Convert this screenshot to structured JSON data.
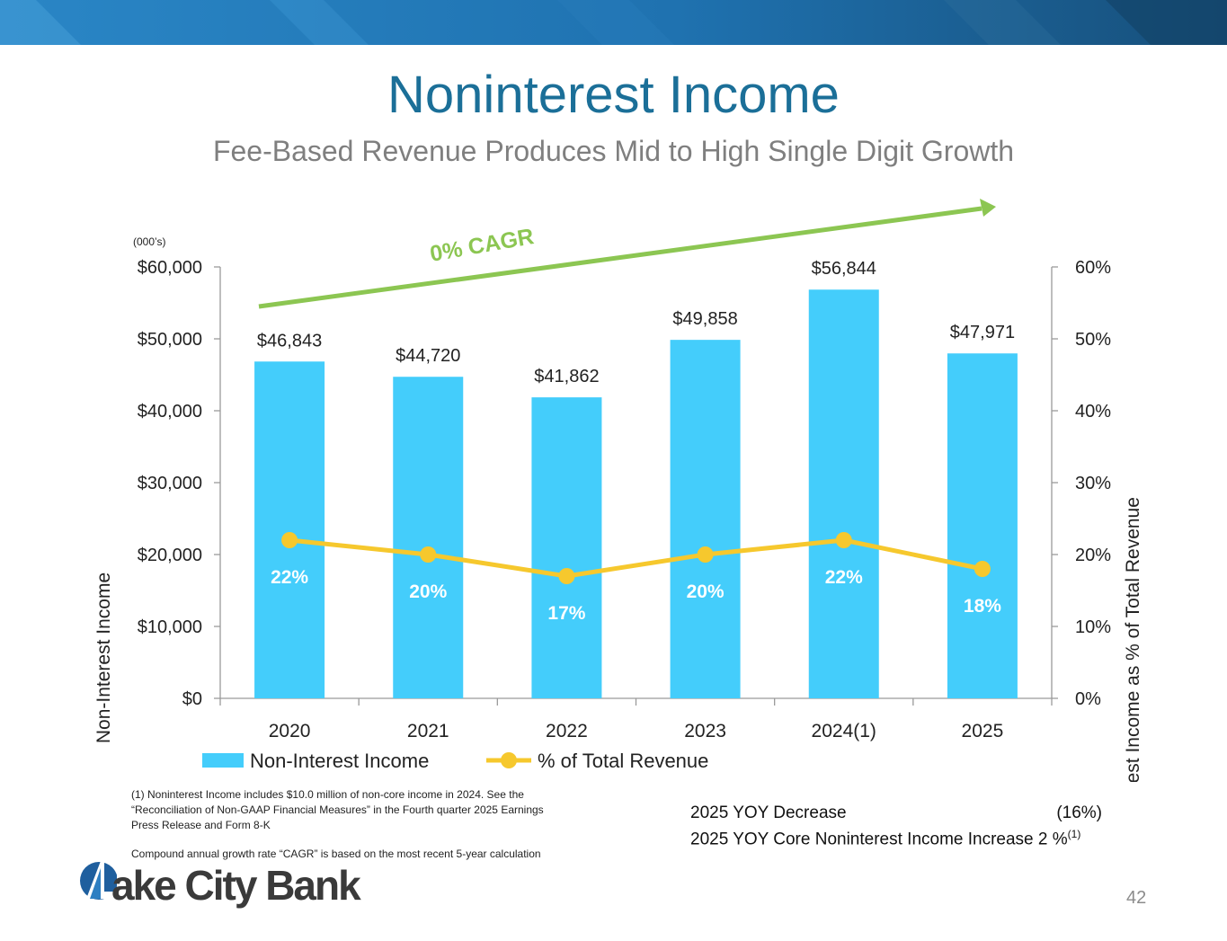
{
  "header": {
    "title": "Noninterest Income",
    "subtitle": "Fee-Based Revenue Produces Mid to High Single Digit Growth"
  },
  "colors": {
    "banner_dark": "#174f7a",
    "banner_light": "#2a86c6",
    "title": "#1b6f98",
    "bar": "#44cdfb",
    "line": "#f6c82d",
    "cagr": "#8cc652"
  },
  "chart_data": {
    "type": "bar",
    "title": "",
    "units_note": "(000’s)",
    "categories": [
      "2020",
      "2021",
      "2022",
      "2023",
      "2024(1)",
      "2025"
    ],
    "series": [
      {
        "name": "Non-Interest Income",
        "type": "bar",
        "axis": "left",
        "values": [
          46843,
          44720,
          41862,
          49858,
          56844,
          47971
        ],
        "labels": [
          "$46,843",
          "$44,720",
          "$41,862",
          "$49,858",
          "$56,844",
          "$47,971"
        ]
      },
      {
        "name": "% of Total Revenue",
        "type": "line",
        "axis": "right",
        "values": [
          22,
          20,
          17,
          20,
          22,
          18
        ],
        "labels": [
          "22%",
          "20%",
          "17%",
          "20%",
          "22%",
          "18%"
        ]
      }
    ],
    "ylabel": "Non-Interest Income",
    "y2label": "Non-Interest Income as % of Total Revenue",
    "ylim": [
      0,
      60000
    ],
    "y2lim": [
      0,
      60
    ],
    "yticks": [
      "$0",
      "$10,000",
      "$20,000",
      "$30,000",
      "$40,000",
      "$50,000",
      "$60,000"
    ],
    "y2ticks": [
      "0%",
      "10%",
      "20%",
      "30%",
      "40%",
      "50%",
      "60%"
    ],
    "annotation": "0% CAGR",
    "legend_position": "bottom"
  },
  "footnotes": {
    "note1": "(1) Noninterest Income includes $10.0 million of non-core income in 2024. See the “Reconciliation of Non-GAAP Financial Measures” in the Fourth quarter 2025 Earnings Press Release and Form 8-K",
    "note2": "Compound annual growth rate “CAGR” is based on the most recent 5-year calculation"
  },
  "yoy": {
    "decrease_label": "2025 YOY Decrease",
    "decrease_value": "(16%)",
    "core_label": "2025 YOY Core Noninterest Income Increase",
    "core_value": "2 %",
    "core_sup": "(1)"
  },
  "footer": {
    "logo_text": "ake City Bank",
    "page_number": "42"
  }
}
